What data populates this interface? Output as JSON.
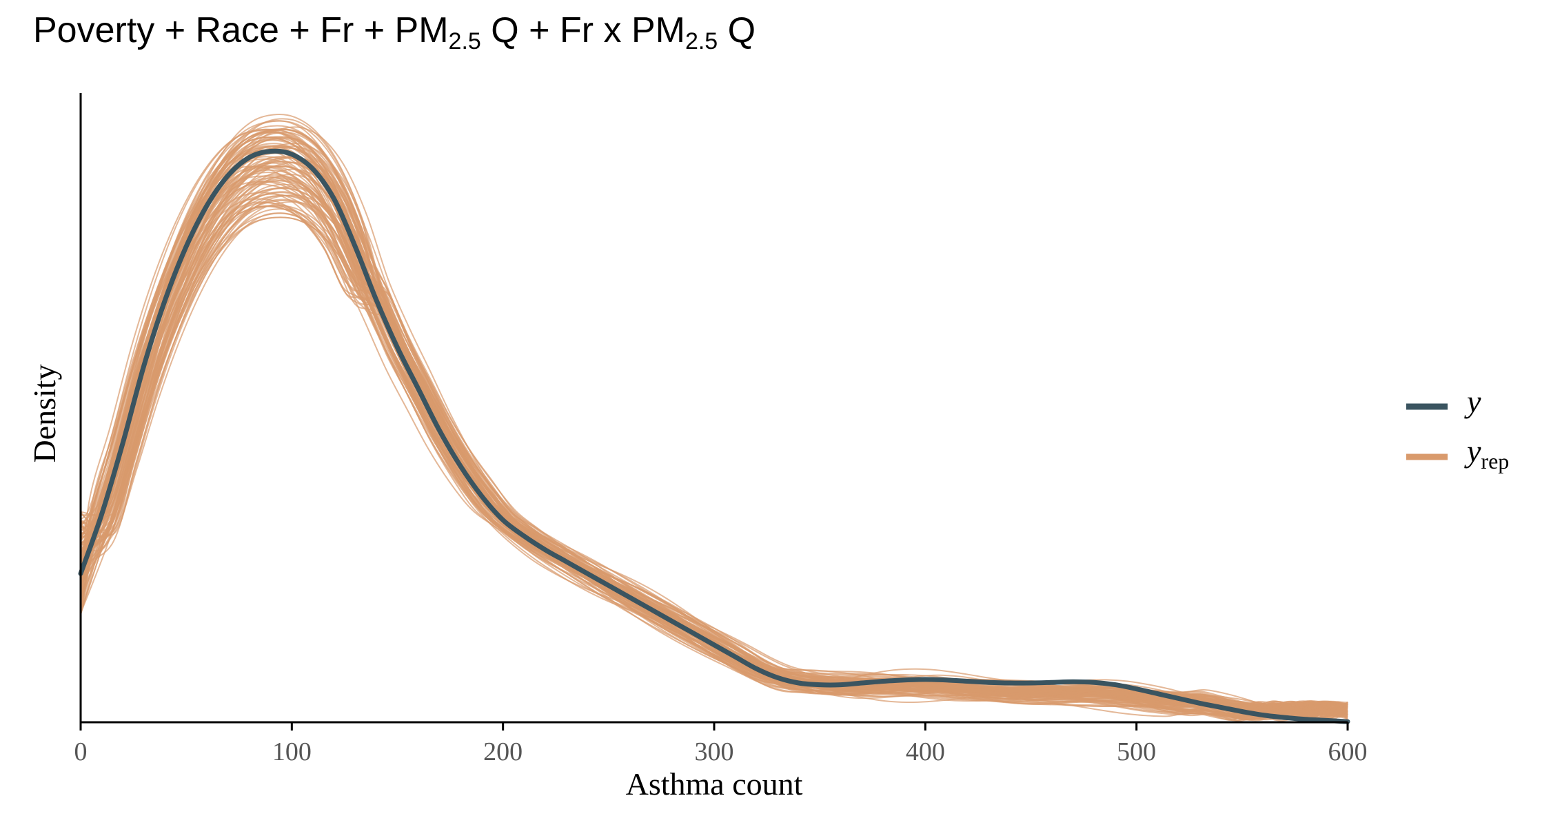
{
  "title": {
    "p1": "Poverty + Race + Fr + PM",
    "s1": "2.5",
    "p2": " Q + Fr x PM",
    "s2": "2.5",
    "p3": " Q"
  },
  "chart_data": {
    "type": "line",
    "xlabel": "Asthma count",
    "ylabel": "Density",
    "xlim": [
      0,
      600
    ],
    "ylim": [
      0,
      1
    ],
    "x_ticks": [
      "0",
      "100",
      "200",
      "300",
      "400",
      "500",
      "600"
    ],
    "y_ticks_shown": false,
    "grid": false,
    "legend": {
      "placement": "right",
      "y_label": "y",
      "yrep_label": "y",
      "yrep_sub": "rep"
    },
    "colors": {
      "y": "#3a5460",
      "yrep": "#d99a6c",
      "axis": "#000000"
    },
    "series": [
      {
        "name": "y",
        "x": [
          0,
          10,
          20,
          30,
          40,
          50,
          60,
          70,
          80,
          90,
          100,
          110,
          120,
          130,
          140,
          150,
          160,
          170,
          180,
          190,
          200,
          210,
          220,
          230,
          240,
          250,
          260,
          270,
          280,
          290,
          300,
          310,
          320,
          330,
          340,
          350,
          360,
          370,
          380,
          390,
          400,
          410,
          420,
          430,
          440,
          450,
          460,
          470,
          480,
          490,
          500,
          510,
          520,
          530,
          540,
          550,
          560,
          570,
          580,
          590,
          600
        ],
        "values": [
          0.25,
          0.35,
          0.47,
          0.6,
          0.71,
          0.8,
          0.87,
          0.92,
          0.95,
          0.96,
          0.955,
          0.93,
          0.88,
          0.8,
          0.71,
          0.63,
          0.56,
          0.49,
          0.43,
          0.38,
          0.34,
          0.313,
          0.29,
          0.27,
          0.25,
          0.23,
          0.21,
          0.19,
          0.17,
          0.15,
          0.13,
          0.11,
          0.09,
          0.075,
          0.066,
          0.063,
          0.063,
          0.066,
          0.069,
          0.071,
          0.072,
          0.071,
          0.069,
          0.067,
          0.066,
          0.066,
          0.067,
          0.068,
          0.067,
          0.063,
          0.056,
          0.048,
          0.04,
          0.032,
          0.025,
          0.018,
          0.012,
          0.008,
          0.005,
          0.003,
          0.001
        ]
      }
    ],
    "yrep_draws": 100
  }
}
